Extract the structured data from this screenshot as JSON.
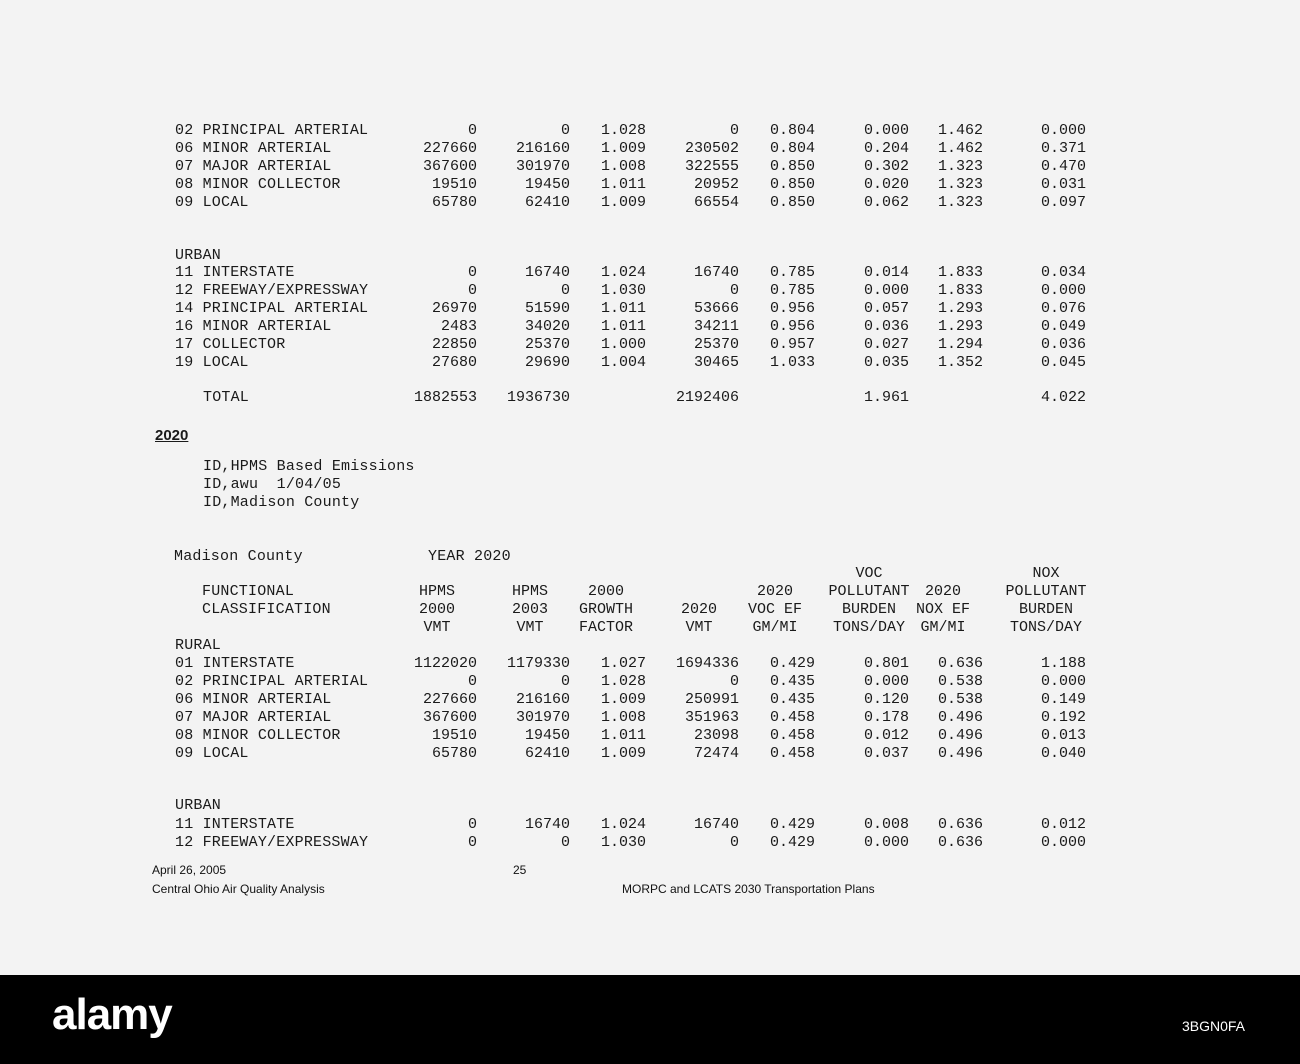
{
  "section1": {
    "rural_rows": [
      [
        "02 PRINCIPAL ARTERIAL",
        "0",
        "0",
        "1.028",
        "0",
        "0.804",
        "0.000",
        "1.462",
        "0.000"
      ],
      [
        "06 MINOR ARTERIAL",
        "227660",
        "216160",
        "1.009",
        "230502",
        "0.804",
        "0.204",
        "1.462",
        "0.371"
      ],
      [
        "07 MAJOR ARTERIAL",
        "367600",
        "301970",
        "1.008",
        "322555",
        "0.850",
        "0.302",
        "1.323",
        "0.470"
      ],
      [
        "08 MINOR COLLECTOR",
        "19510",
        "19450",
        "1.011",
        "20952",
        "0.850",
        "0.020",
        "1.323",
        "0.031"
      ],
      [
        "09 LOCAL",
        "65780",
        "62410",
        "1.009",
        "66554",
        "0.850",
        "0.062",
        "1.323",
        "0.097"
      ]
    ],
    "urban_label": "URBAN",
    "urban_rows": [
      [
        "11 INTERSTATE",
        "0",
        "16740",
        "1.024",
        "16740",
        "0.785",
        "0.014",
        "1.833",
        "0.034"
      ],
      [
        "12 FREEWAY/EXPRESSWAY",
        "0",
        "0",
        "1.030",
        "0",
        "0.785",
        "0.000",
        "1.833",
        "0.000"
      ],
      [
        "14 PRINCIPAL ARTERIAL",
        "26970",
        "51590",
        "1.011",
        "53666",
        "0.956",
        "0.057",
        "1.293",
        "0.076"
      ],
      [
        "16 MINOR ARTERIAL",
        "2483",
        "34020",
        "1.011",
        "34211",
        "0.956",
        "0.036",
        "1.293",
        "0.049"
      ],
      [
        "17 COLLECTOR",
        "22850",
        "25370",
        "1.000",
        "25370",
        "0.957",
        "0.027",
        "1.294",
        "0.036"
      ],
      [
        "19 LOCAL",
        "27680",
        "29690",
        "1.004",
        "30465",
        "1.033",
        "0.035",
        "1.352",
        "0.045"
      ]
    ],
    "total_row": [
      "TOTAL",
      "1882553",
      "1936730",
      "",
      "2192406",
      "",
      "1.961",
      "",
      "4.022"
    ]
  },
  "year_heading": "2020",
  "id_lines": [
    "ID,HPMS Based Emissions",
    "ID,awu  1/04/05",
    "ID,Madison County"
  ],
  "section2": {
    "county": "Madison County",
    "year": "YEAR 2020",
    "headers": [
      [
        "FUNCTIONAL",
        "CLASSIFICATION"
      ],
      [
        "HPMS",
        "2000",
        "VMT"
      ],
      [
        "HPMS",
        "2003",
        "VMT"
      ],
      [
        "2000",
        "GROWTH",
        "FACTOR"
      ],
      [
        "2020",
        "VMT"
      ],
      [
        "2020",
        "VOC EF",
        "GM/MI"
      ],
      [
        "VOC",
        "POLLUTANT",
        "BURDEN",
        "TONS/DAY"
      ],
      [
        "2020",
        "NOX EF",
        "GM/MI"
      ],
      [
        "NOX",
        "POLLUTANT",
        "BURDEN",
        "TONS/DAY"
      ]
    ],
    "rural_label": "RURAL",
    "rural_rows": [
      [
        "01 INTERSTATE",
        "1122020",
        "1179330",
        "1.027",
        "1694336",
        "0.429",
        "0.801",
        "0.636",
        "1.188"
      ],
      [
        "02 PRINCIPAL ARTERIAL",
        "0",
        "0",
        "1.028",
        "0",
        "0.435",
        "0.000",
        "0.538",
        "0.000"
      ],
      [
        "06 MINOR ARTERIAL",
        "227660",
        "216160",
        "1.009",
        "250991",
        "0.435",
        "0.120",
        "0.538",
        "0.149"
      ],
      [
        "07 MAJOR ARTERIAL",
        "367600",
        "301970",
        "1.008",
        "351963",
        "0.458",
        "0.178",
        "0.496",
        "0.192"
      ],
      [
        "08 MINOR COLLECTOR",
        "19510",
        "19450",
        "1.011",
        "23098",
        "0.458",
        "0.012",
        "0.496",
        "0.013"
      ],
      [
        "09 LOCAL",
        "65780",
        "62410",
        "1.009",
        "72474",
        "0.458",
        "0.037",
        "0.496",
        "0.040"
      ]
    ],
    "urban_label": "URBAN",
    "urban_rows": [
      [
        "11 INTERSTATE",
        "0",
        "16740",
        "1.024",
        "16740",
        "0.429",
        "0.008",
        "0.636",
        "0.012"
      ],
      [
        "12 FREEWAY/EXPRESSWAY",
        "0",
        "0",
        "1.030",
        "0",
        "0.429",
        "0.000",
        "0.636",
        "0.000"
      ]
    ]
  },
  "footer": {
    "date": "April 26, 2005",
    "page": "25",
    "left_title": "Central Ohio Air Quality Analysis",
    "right_title": "MORPC and LCATS 2030 Transportation Plans"
  },
  "watermark": {
    "logo": "alamy",
    "code": "3BGN0FA"
  }
}
